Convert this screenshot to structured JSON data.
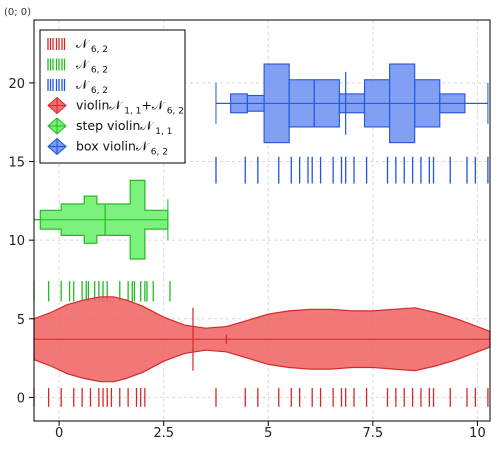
{
  "readout": "(0; 0)",
  "chart_data": {
    "type": "violin",
    "xlim": [
      -0.6,
      10.3
    ],
    "ylim": [
      -1.5,
      24
    ],
    "xticks": [
      0,
      2.5,
      5,
      7.5,
      10
    ],
    "xtick_labels": [
      "0",
      "2.5",
      "5",
      "7.5",
      "10"
    ],
    "yticks": [
      0,
      5,
      10,
      15,
      20
    ],
    "ytick_labels": [
      "0",
      "5",
      "10",
      "15",
      "20"
    ],
    "grid": true,
    "legend_position": "top-left",
    "colors": {
      "red": "#d62828",
      "red_fill": "#f06060",
      "green": "#22bb22",
      "green_fill": "#66ee66",
      "blue": "#2255dd",
      "blue_fill": "#6b8ff2"
    },
    "legend": [
      {
        "marker": "rug",
        "color": "red",
        "label": "𝒩",
        "sub": "6, 2",
        "extra": ""
      },
      {
        "marker": "rug",
        "color": "green",
        "label": "𝒩",
        "sub": "6, 2",
        "extra": ""
      },
      {
        "marker": "rug",
        "color": "blue",
        "label": "𝒩",
        "sub": "6, 2",
        "extra": ""
      },
      {
        "marker": "diamond",
        "color": "red",
        "label": "violin𝒩",
        "sub": "1, 1",
        "extra": "+𝒩",
        "sub2": "6, 2"
      },
      {
        "marker": "diamond",
        "color": "green",
        "label": "step violin𝒩",
        "sub": "1, 1",
        "extra": ""
      },
      {
        "marker": "diamond",
        "color": "blue",
        "label": "box violin𝒩",
        "sub": "6, 2",
        "extra": ""
      }
    ],
    "rugs": [
      {
        "name": "red-rug",
        "color": "red",
        "y0": -0.6,
        "y1": 0.6,
        "x": [
          -0.6,
          -0.25,
          0.05,
          0.35,
          0.55,
          0.75,
          0.95,
          1.05,
          1.15,
          1.25,
          1.45,
          1.65,
          1.85,
          1.95,
          2.05,
          3.75,
          4.45,
          4.75,
          5.25,
          5.55,
          5.75,
          6.05,
          6.25,
          6.55,
          6.75,
          6.85,
          7.05,
          7.35,
          7.85,
          8.05,
          8.25,
          8.45,
          8.65,
          8.85,
          8.95,
          9.35,
          9.75,
          9.95,
          10.25
        ]
      },
      {
        "name": "green-rug",
        "color": "green",
        "y0": 6.1,
        "y1": 7.4,
        "x": [
          -0.6,
          -0.25,
          0.05,
          0.25,
          0.35,
          0.55,
          0.65,
          0.7,
          0.85,
          0.95,
          1.05,
          1.15,
          1.45,
          1.65,
          1.75,
          1.8,
          1.95,
          2.05,
          2.1,
          2.25,
          2.65
        ]
      },
      {
        "name": "blue-rug",
        "color": "blue",
        "y0": 13.6,
        "y1": 15.3,
        "x": [
          3.75,
          4.45,
          4.75,
          5.25,
          5.55,
          5.75,
          5.95,
          6.05,
          6.25,
          6.55,
          6.75,
          6.85,
          7.05,
          7.35,
          7.85,
          8.05,
          8.25,
          8.45,
          8.65,
          8.85,
          8.95,
          9.35,
          9.75,
          9.95,
          10.25
        ]
      }
    ],
    "red_violin": {
      "center": 3.7,
      "x_min": -0.6,
      "x_max": 10.3,
      "upper": [
        [
          -0.6,
          5.0
        ],
        [
          -0.2,
          5.4
        ],
        [
          0.2,
          5.9
        ],
        [
          0.6,
          6.2
        ],
        [
          1.0,
          6.4
        ],
        [
          1.3,
          6.4
        ],
        [
          1.6,
          6.2
        ],
        [
          2.0,
          5.8
        ],
        [
          2.5,
          5.1
        ],
        [
          3.0,
          4.6
        ],
        [
          3.5,
          4.4
        ],
        [
          4.0,
          4.5
        ],
        [
          4.5,
          4.9
        ],
        [
          5.0,
          5.3
        ],
        [
          5.5,
          5.5
        ],
        [
          6.0,
          5.6
        ],
        [
          6.5,
          5.6
        ],
        [
          7.0,
          5.5
        ],
        [
          7.5,
          5.5
        ],
        [
          8.0,
          5.6
        ],
        [
          8.5,
          5.7
        ],
        [
          9.0,
          5.4
        ],
        [
          9.5,
          5.0
        ],
        [
          10.0,
          4.5
        ],
        [
          10.3,
          4.2
        ]
      ],
      "lower": [
        [
          -0.6,
          2.4
        ],
        [
          -0.2,
          2.0
        ],
        [
          0.2,
          1.5
        ],
        [
          0.6,
          1.2
        ],
        [
          1.0,
          1.0
        ],
        [
          1.3,
          1.0
        ],
        [
          1.6,
          1.2
        ],
        [
          2.0,
          1.6
        ],
        [
          2.5,
          2.3
        ],
        [
          3.0,
          2.8
        ],
        [
          3.5,
          3.0
        ],
        [
          4.0,
          2.9
        ],
        [
          4.5,
          2.5
        ],
        [
          5.0,
          2.1
        ],
        [
          5.5,
          1.9
        ],
        [
          6.0,
          1.8
        ],
        [
          6.5,
          1.8
        ],
        [
          7.0,
          1.9
        ],
        [
          7.5,
          1.9
        ],
        [
          8.0,
          1.8
        ],
        [
          8.5,
          1.7
        ],
        [
          9.0,
          2.0
        ],
        [
          9.5,
          2.4
        ],
        [
          10.0,
          2.9
        ],
        [
          10.3,
          3.2
        ]
      ],
      "median": 3.2,
      "mean": 4.0,
      "median_y": [
        1.7,
        5.7
      ],
      "mean_y": [
        3.4,
        4.0
      ]
    },
    "green_violin": {
      "center": 11.3,
      "x_min": -0.6,
      "x_max": 2.6,
      "steps": [
        [
          -0.6,
          -0.45,
          0
        ],
        [
          -0.45,
          0.05,
          0.6
        ],
        [
          0.05,
          0.6,
          1.0
        ],
        [
          0.6,
          0.9,
          1.5
        ],
        [
          0.9,
          1.7,
          1.0
        ],
        [
          1.7,
          2.05,
          2.5
        ],
        [
          2.05,
          2.6,
          0.6
        ]
      ],
      "median": 1.1
    },
    "blue_violin": {
      "center": 18.7,
      "x_min": 3.75,
      "x_max": 10.25,
      "boxes": [
        [
          3.75,
          4.1,
          0
        ],
        [
          4.1,
          4.5,
          0.6
        ],
        [
          4.5,
          4.9,
          0.5
        ],
        [
          4.9,
          5.5,
          2.5
        ],
        [
          5.5,
          6.1,
          1.5
        ],
        [
          6.1,
          6.7,
          1.5
        ],
        [
          6.7,
          7.3,
          0.6
        ],
        [
          7.3,
          7.9,
          1.5
        ],
        [
          7.9,
          8.5,
          2.5
        ],
        [
          8.5,
          9.1,
          1.5
        ],
        [
          9.1,
          9.7,
          0.6
        ],
        [
          9.7,
          10.25,
          0
        ]
      ],
      "median": 6.85
    }
  }
}
